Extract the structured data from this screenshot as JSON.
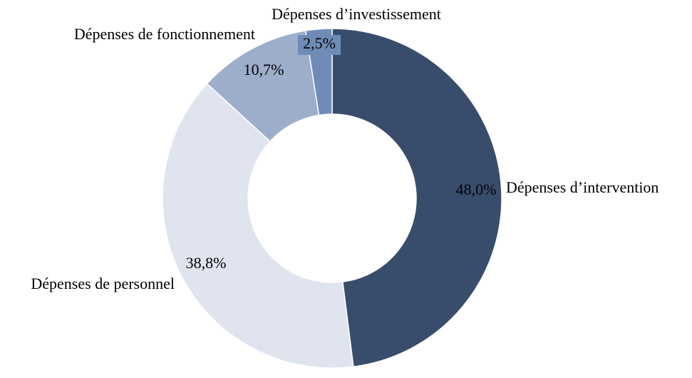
{
  "chart_data": {
    "type": "donut",
    "categories": [
      "Dépenses d’intervention",
      "Dépenses de personnel",
      "Dépenses de fonctionnement",
      "Dépenses d’investissement"
    ],
    "values": [
      48.0,
      38.8,
      10.7,
      2.5
    ],
    "value_labels": [
      "48,0%",
      "38,8%",
      "10,7%",
      "2,5%"
    ],
    "colors": [
      "#384d6c",
      "#dfe4ef",
      "#9daecb",
      "#6f8cb7"
    ]
  }
}
